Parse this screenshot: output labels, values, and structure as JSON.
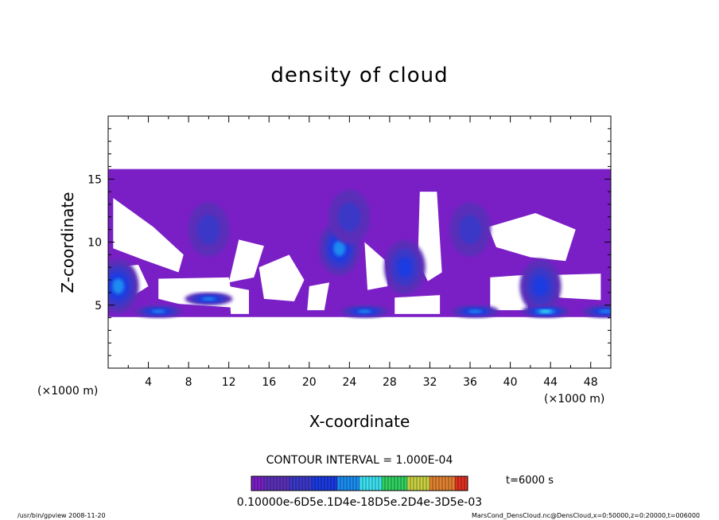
{
  "chart_data": {
    "type": "heatmap",
    "title": "density of cloud",
    "xlabel": "X-coordinate",
    "ylabel": "Z-coordinate",
    "x_unit": "(×1000 m)",
    "z_unit": "(×1000 m)",
    "xlim": [
      0,
      50
    ],
    "ylim": [
      0,
      20
    ],
    "x_ticks": [
      4,
      8,
      12,
      16,
      20,
      24,
      28,
      32,
      36,
      40,
      44,
      48
    ],
    "y_ticks": [
      5,
      10,
      15
    ],
    "contour_interval_text": "CONTOUR INTERVAL = 1.000E-04",
    "time_text": "t=6000 s",
    "colorbar_labels_text": "0.10000e-6D5e.1D4e-18D5e.2D4e-3D5e-03",
    "colors": [
      "#7a1fc6",
      "#5a2fb8",
      "#3a38c8",
      "#1a3ae0",
      "#1a8cf0",
      "#3ce0f0",
      "#30d060",
      "#c8d040",
      "#e08030",
      "#e03020"
    ],
    "cloud_top": 15,
    "cloud_base": 4,
    "dense_cores": [
      {
        "x": 10,
        "z": 11,
        "level": 1
      },
      {
        "x": 23,
        "z": 9.5,
        "level": 3
      },
      {
        "x": 24,
        "z": 12,
        "level": 1
      },
      {
        "x": 36,
        "z": 11,
        "level": 1
      },
      {
        "x": 29.5,
        "z": 8,
        "level": 2
      },
      {
        "x": 1,
        "z": 6.5,
        "level": 3
      },
      {
        "x": 43,
        "z": 6.5,
        "level": 2
      },
      {
        "x": 43.5,
        "z": 4.5,
        "level": 4
      },
      {
        "x": 5,
        "z": 4.5,
        "level": 3
      },
      {
        "x": 25.5,
        "z": 4.5,
        "level": 3
      },
      {
        "x": 36.5,
        "z": 4.5,
        "level": 3
      },
      {
        "x": 10,
        "z": 5.5,
        "level": 3
      },
      {
        "x": 49.5,
        "z": 4.5,
        "level": 3
      }
    ]
  },
  "footer": {
    "left": "/usr/bin/gpview  2008-11-20",
    "right": "MarsCond_DensCloud.nc@DensCloud,x=0:50000,z=0:20000,t=006000"
  }
}
